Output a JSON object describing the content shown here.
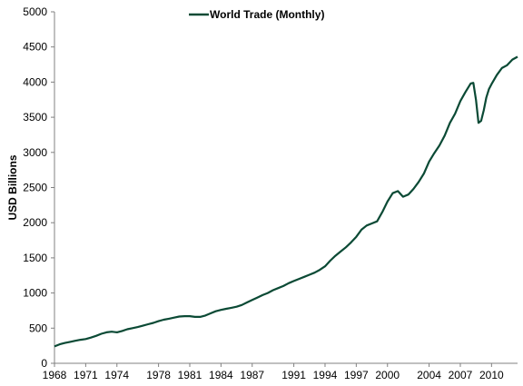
{
  "chart_data": {
    "type": "line",
    "title": "",
    "xlabel": "",
    "ylabel": "USD Billions",
    "xlim": [
      1968,
      2012.5
    ],
    "ylim": [
      0,
      5000
    ],
    "y_ticks": [
      0,
      500,
      1000,
      1500,
      2000,
      2500,
      3000,
      3500,
      4000,
      4500,
      5000
    ],
    "y_tick_labels": [
      "0",
      "500",
      "1000",
      "1500",
      "2000",
      "2500",
      "3000",
      "3500",
      "4000",
      "4500",
      "5000"
    ],
    "x_ticks": [
      1968,
      1971,
      1974,
      1978,
      1981,
      1984,
      1987,
      1991,
      1994,
      1997,
      2000,
      2004,
      2007,
      2010
    ],
    "x_tick_labels": [
      "1968",
      "1971",
      "1974",
      "1978",
      "1981",
      "1984",
      "1987",
      "1991",
      "1994",
      "1997",
      "2000",
      "2004",
      "2007",
      "2010"
    ],
    "grid": false,
    "legend_position": "top-center",
    "series": [
      {
        "name": "World Trade (Monthly)",
        "color": "#0b4a35",
        "x": [
          1968.0,
          1968.5,
          1969.0,
          1969.5,
          1970.0,
          1970.5,
          1971.0,
          1971.5,
          1972.0,
          1972.5,
          1973.0,
          1973.5,
          1974.0,
          1974.5,
          1975.0,
          1975.5,
          1976.0,
          1976.5,
          1977.0,
          1977.5,
          1978.0,
          1978.5,
          1979.0,
          1979.5,
          1980.0,
          1980.5,
          1981.0,
          1981.5,
          1982.0,
          1982.5,
          1983.0,
          1983.5,
          1984.0,
          1984.5,
          1985.0,
          1985.5,
          1986.0,
          1986.5,
          1987.0,
          1987.5,
          1988.0,
          1988.5,
          1989.0,
          1989.5,
          1990.0,
          1990.5,
          1991.0,
          1991.5,
          1992.0,
          1992.5,
          1993.0,
          1993.5,
          1994.0,
          1994.5,
          1995.0,
          1995.5,
          1996.0,
          1996.5,
          1997.0,
          1997.5,
          1998.0,
          1998.5,
          1999.0,
          1999.5,
          2000.0,
          2000.5,
          2001.0,
          2001.5,
          2002.0,
          2002.5,
          2003.0,
          2003.5,
          2004.0,
          2004.5,
          2005.0,
          2005.5,
          2006.0,
          2006.5,
          2007.0,
          2007.5,
          2008.0,
          2008.25,
          2008.5,
          2008.75,
          2009.0,
          2009.25,
          2009.5,
          2009.75,
          2010.0,
          2010.5,
          2011.0,
          2011.5,
          2012.0,
          2012.5
        ],
        "values": [
          240,
          270,
          290,
          305,
          320,
          335,
          345,
          365,
          390,
          420,
          440,
          450,
          440,
          460,
          485,
          500,
          515,
          535,
          555,
          575,
          600,
          620,
          635,
          650,
          665,
          670,
          670,
          660,
          660,
          680,
          710,
          740,
          760,
          775,
          790,
          805,
          830,
          865,
          900,
          935,
          970,
          1000,
          1040,
          1070,
          1100,
          1140,
          1170,
          1200,
          1230,
          1260,
          1290,
          1330,
          1380,
          1460,
          1530,
          1590,
          1650,
          1720,
          1800,
          1900,
          1960,
          1990,
          2020,
          2150,
          2300,
          2420,
          2450,
          2370,
          2400,
          2480,
          2580,
          2700,
          2870,
          2990,
          3100,
          3240,
          3420,
          3550,
          3730,
          3860,
          3980,
          3990,
          3750,
          3420,
          3450,
          3600,
          3780,
          3900,
          3970,
          4100,
          4200,
          4240,
          4320,
          4360
        ]
      }
    ]
  }
}
